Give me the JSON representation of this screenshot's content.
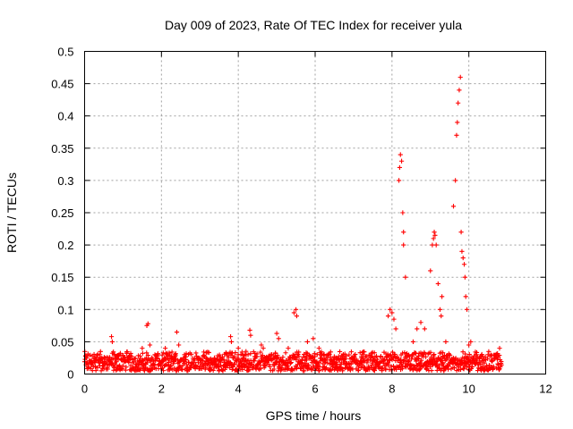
{
  "chart_data": {
    "type": "scatter",
    "title": "Day 009 of 2023, Rate Of TEC Index for receiver yula",
    "xlabel": "GPS time / hours",
    "ylabel": "ROTI / TECUs",
    "xlim": [
      0,
      12
    ],
    "ylim": [
      0,
      0.5
    ],
    "xticks": [
      0,
      2,
      4,
      6,
      8,
      10,
      12
    ],
    "yticks": [
      0,
      0.05,
      0.1,
      0.15,
      0.2,
      0.25,
      0.3,
      0.35,
      0.4,
      0.45,
      0.5
    ],
    "xtick_labels": [
      "0",
      "2",
      "4",
      "6",
      "8",
      "10",
      "12"
    ],
    "ytick_labels": [
      "0",
      "0.05",
      "0.1",
      "0.15",
      "0.2",
      "0.25",
      "0.3",
      "0.35",
      "0.4",
      "0.45",
      "0.5"
    ],
    "grid": true,
    "marker": "+",
    "color": "#ff0000",
    "x_range_of_data": [
      0,
      10.85
    ],
    "baseline_band": [
      0.005,
      0.035
    ],
    "series": [
      {
        "name": "ROTI",
        "x": [
          0.05,
          0.2,
          0.4,
          0.7,
          0.72,
          0.9,
          1.2,
          1.5,
          1.62,
          1.65,
          1.7,
          1.9,
          2.1,
          2.4,
          2.45,
          2.6,
          3.0,
          3.3,
          3.5,
          3.8,
          3.82,
          4.0,
          4.2,
          4.3,
          4.32,
          4.6,
          4.65,
          5.0,
          5.05,
          5.3,
          5.45,
          5.5,
          5.52,
          5.8,
          5.95,
          6.1,
          6.5,
          7.0,
          7.5,
          7.9,
          7.95,
          8.0,
          8.05,
          8.1,
          8.18,
          8.2,
          8.22,
          8.25,
          8.28,
          8.3,
          8.3,
          8.35,
          8.55,
          8.65,
          8.75,
          8.85,
          9.0,
          9.05,
          9.08,
          9.1,
          9.12,
          9.15,
          9.2,
          9.25,
          9.28,
          9.3,
          9.4,
          9.6,
          9.65,
          9.68,
          9.7,
          9.72,
          9.75,
          9.78,
          9.8,
          9.82,
          9.85,
          9.88,
          9.9,
          9.92,
          9.95,
          10.0,
          10.05,
          10.2,
          10.5,
          10.8
        ],
        "y": [
          0.025,
          0.028,
          0.03,
          0.058,
          0.05,
          0.03,
          0.032,
          0.04,
          0.075,
          0.078,
          0.045,
          0.03,
          0.04,
          0.065,
          0.045,
          0.03,
          0.022,
          0.018,
          0.02,
          0.058,
          0.05,
          0.04,
          0.035,
          0.068,
          0.06,
          0.045,
          0.04,
          0.063,
          0.055,
          0.04,
          0.095,
          0.1,
          0.09,
          0.05,
          0.055,
          0.04,
          0.02,
          0.02,
          0.02,
          0.09,
          0.1,
          0.095,
          0.085,
          0.07,
          0.3,
          0.32,
          0.34,
          0.33,
          0.25,
          0.2,
          0.22,
          0.15,
          0.05,
          0.07,
          0.08,
          0.07,
          0.16,
          0.2,
          0.21,
          0.22,
          0.215,
          0.2,
          0.14,
          0.1,
          0.09,
          0.12,
          0.05,
          0.26,
          0.3,
          0.37,
          0.39,
          0.42,
          0.44,
          0.46,
          0.22,
          0.19,
          0.18,
          0.17,
          0.15,
          0.12,
          0.1,
          0.045,
          0.05,
          0.03,
          0.03,
          0.04
        ]
      }
    ]
  }
}
